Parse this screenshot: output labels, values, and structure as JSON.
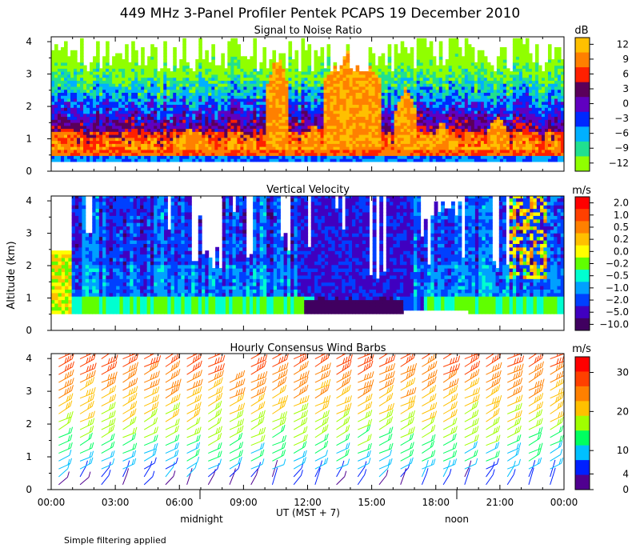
{
  "title": "449 MHz 3-Panel Profiler Pentek PCAPS 19 December 2010",
  "y_axis_label": "Altitude (km)",
  "x_axis_label": "UT  (MST + 7)",
  "markers": {
    "midnight": "midnight",
    "noon": "noon"
  },
  "footnote": "Simple filtering applied",
  "x_ticks": [
    "00:00",
    "03:00",
    "06:00",
    "09:00",
    "12:00",
    "15:00",
    "18:00",
    "21:00",
    "00:00"
  ],
  "y_ticks": [
    "0",
    "1",
    "2",
    "3",
    "4"
  ],
  "chart_data": [
    {
      "type": "heatmap",
      "title": "Signal to Noise Ratio",
      "unit": "dB",
      "colorbar_ticks": [
        "12",
        "9",
        "6",
        "3",
        "0",
        "−3",
        "−6",
        "−9",
        "−12"
      ],
      "colorbar_colors": [
        "#ffc000",
        "#ff8000",
        "#ff2000",
        "#5a005a",
        "#6000c0",
        "#0028ff",
        "#00b0ff",
        "#20e090",
        "#90ff00"
      ],
      "xlabel": "UT (MST + 7)",
      "ylabel": "Altitude (km)",
      "xlim": [
        0,
        24
      ],
      "ylim": [
        0,
        4
      ]
    },
    {
      "type": "heatmap",
      "title": "Vertical Velocity",
      "unit": "m/s",
      "colorbar_ticks": [
        "2.0",
        "1.0",
        "0.5",
        "0.2",
        "0.0",
        "−0.2",
        "−0.5",
        "−1.0",
        "−2.0",
        "−5.0",
        "−10.0"
      ],
      "colorbar_colors": [
        "#ff0000",
        "#ff4000",
        "#ff8000",
        "#ffc000",
        "#ffff00",
        "#60ff00",
        "#00ffd0",
        "#00a0ff",
        "#0040ff",
        "#4000c0",
        "#400060"
      ],
      "xlabel": "UT (MST + 7)",
      "ylabel": "Altitude (km)",
      "xlim": [
        0,
        24
      ],
      "ylim": [
        0,
        4
      ]
    },
    {
      "type": "scatter",
      "title": "Hourly Consensus Wind Barbs",
      "unit": "m/s",
      "colorbar_ticks": [
        "30",
        "20",
        "10",
        "4",
        "0"
      ],
      "colorbar_values": [
        30,
        20,
        10,
        4,
        0
      ],
      "colorbar_colors": [
        "#ff0000",
        "#ff4000",
        "#ff8000",
        "#ffc000",
        "#a0ff00",
        "#00ff60",
        "#00c0ff",
        "#0020ff",
        "#500090"
      ],
      "xlabel": "UT (MST + 7)",
      "ylabel": "Altitude (km)",
      "xlim": [
        0,
        24
      ],
      "ylim": [
        0,
        4
      ]
    }
  ]
}
